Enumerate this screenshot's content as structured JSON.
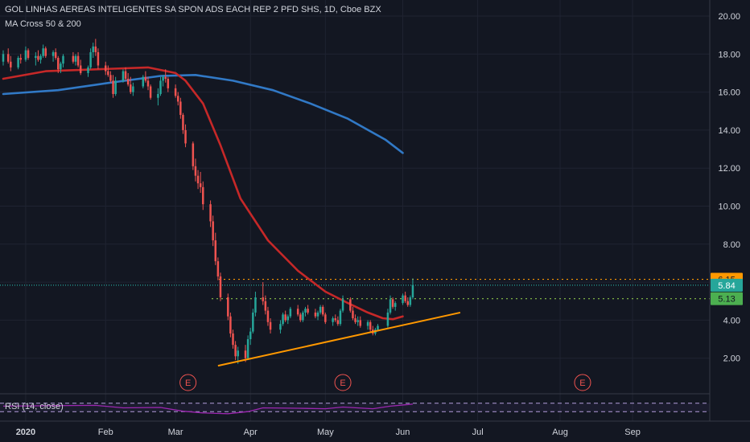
{
  "title": "GOL LINHAS AEREAS INTELIGENTES SA SPON ADS EACH REP 2 PFD SHS, 1D, Cboe BZX",
  "indicator": "MA Cross 50 & 200",
  "rsi_label": "RSI (14, close)",
  "colors": {
    "background": "#131722",
    "grid": "#1f2331",
    "up_candle": "#26a69a",
    "down_candle": "#ef5350",
    "ma50": "#c62828",
    "ma200": "#3179c6",
    "trendline": "#ff9800",
    "rsi": "#9c27b0",
    "earnings": "#ef5350"
  },
  "chart_data": {
    "type": "candlestick",
    "y_ticks": [
      "2.00",
      "4.00",
      "6.00",
      "8.00",
      "10.00",
      "12.00",
      "14.00",
      "16.00",
      "18.00",
      "20.00"
    ],
    "ylim": [
      0,
      20.6
    ],
    "x_ticks": [
      "2020",
      "Feb",
      "Mar",
      "Apr",
      "May",
      "Jun",
      "Jul",
      "Aug",
      "Sep"
    ],
    "price_labels": [
      {
        "value": 6.15,
        "text": "6.15",
        "color": "#ff9800",
        "text_color": "#131722"
      },
      {
        "value": 5.84,
        "text": "5.84",
        "color": "#26a69a",
        "text_color": "#ffffff"
      },
      {
        "value": 5.13,
        "text": "5.13",
        "color": "#4caf50",
        "text_color": "#131722"
      }
    ],
    "horizontal_lines": [
      {
        "value": 6.15,
        "color": "#ff9800",
        "style": "dotted"
      },
      {
        "value": 5.84,
        "color": "#26a69a",
        "style": "dotted"
      },
      {
        "value": 5.13,
        "color": "#8bc34a",
        "style": "dotted"
      }
    ],
    "trendline": [
      [
        "2020-03-19",
        1.6
      ],
      [
        "2020-06-24",
        4.4
      ]
    ],
    "earnings": [
      {
        "date": "2020-03-07",
        "label": "E"
      },
      {
        "date": "2020-05-08",
        "label": "E"
      },
      {
        "date": "2020-08-12",
        "label": "E"
      }
    ],
    "ma50": [
      [
        "2019-12-24",
        16.7
      ],
      [
        "2020-01-10",
        17.1
      ],
      [
        "2020-01-31",
        17.2
      ],
      [
        "2020-02-20",
        17.3
      ],
      [
        "2020-03-02",
        17.0
      ],
      [
        "2020-03-06",
        16.6
      ],
      [
        "2020-03-13",
        15.4
      ],
      [
        "2020-03-20",
        13.2
      ],
      [
        "2020-03-28",
        10.4
      ],
      [
        "2020-04-08",
        8.2
      ],
      [
        "2020-04-20",
        6.6
      ],
      [
        "2020-05-01",
        5.5
      ],
      [
        "2020-05-10",
        4.9
      ],
      [
        "2020-05-18",
        4.4
      ],
      [
        "2020-05-24",
        4.1
      ],
      [
        "2020-05-28",
        4.05
      ],
      [
        "2020-06-01",
        4.2
      ]
    ],
    "ma200": [
      [
        "2019-12-24",
        15.9
      ],
      [
        "2020-01-15",
        16.1
      ],
      [
        "2020-02-05",
        16.5
      ],
      [
        "2020-02-25",
        16.85
      ],
      [
        "2020-03-10",
        16.9
      ],
      [
        "2020-03-25",
        16.6
      ],
      [
        "2020-04-10",
        16.1
      ],
      [
        "2020-04-25",
        15.4
      ],
      [
        "2020-05-10",
        14.6
      ],
      [
        "2020-05-25",
        13.5
      ],
      [
        "2020-06-01",
        12.8
      ]
    ],
    "candles": [
      [
        "2019-12-24",
        17.6,
        18.2,
        17.4,
        18.0
      ],
      [
        "2019-12-26",
        18.0,
        18.3,
        17.5,
        17.6
      ],
      [
        "2019-12-27",
        17.6,
        17.9,
        17.1,
        17.3
      ],
      [
        "2019-12-30",
        17.3,
        17.9,
        17.2,
        17.8
      ],
      [
        "2019-12-31",
        17.8,
        18.0,
        17.5,
        17.7
      ],
      [
        "2020-01-02",
        17.7,
        18.4,
        17.6,
        18.2
      ],
      [
        "2020-01-03",
        18.2,
        18.3,
        17.7,
        17.8
      ],
      [
        "2020-01-06",
        17.8,
        18.1,
        17.4,
        17.9
      ],
      [
        "2020-01-07",
        17.9,
        18.2,
        17.6,
        17.7
      ],
      [
        "2020-01-08",
        17.7,
        18.0,
        17.5,
        17.9
      ],
      [
        "2020-01-09",
        17.9,
        18.5,
        17.8,
        18.3
      ],
      [
        "2020-01-10",
        18.3,
        18.4,
        17.8,
        17.9
      ],
      [
        "2020-01-13",
        17.9,
        18.2,
        17.6,
        18.1
      ],
      [
        "2020-01-14",
        18.1,
        18.3,
        17.7,
        17.8
      ],
      [
        "2020-01-15",
        17.8,
        17.9,
        17.0,
        17.2
      ],
      [
        "2020-01-16",
        17.2,
        17.6,
        17.0,
        17.5
      ],
      [
        "2020-01-17",
        17.5,
        18.0,
        17.3,
        17.9
      ],
      [
        "2020-01-21",
        17.9,
        18.1,
        17.5,
        17.6
      ],
      [
        "2020-01-22",
        17.6,
        18.0,
        17.4,
        17.9
      ],
      [
        "2020-01-23",
        17.9,
        18.1,
        17.3,
        17.4
      ],
      [
        "2020-01-24",
        17.4,
        17.7,
        16.9,
        17.0
      ],
      [
        "2020-01-27",
        17.0,
        17.4,
        16.8,
        17.3
      ],
      [
        "2020-01-28",
        17.3,
        18.3,
        17.2,
        18.1
      ],
      [
        "2020-01-29",
        18.1,
        18.6,
        17.8,
        18.4
      ],
      [
        "2020-01-30",
        18.4,
        18.8,
        17.9,
        18.1
      ],
      [
        "2020-01-31",
        18.1,
        18.3,
        17.2,
        17.4
      ],
      [
        "2020-02-03",
        17.4,
        17.6,
        16.9,
        17.1
      ],
      [
        "2020-02-04",
        17.1,
        17.4,
        16.8,
        16.9
      ],
      [
        "2020-02-05",
        16.9,
        17.1,
        16.5,
        16.6
      ],
      [
        "2020-02-06",
        16.6,
        16.9,
        15.7,
        15.9
      ],
      [
        "2020-02-07",
        15.9,
        16.8,
        15.8,
        16.6
      ],
      [
        "2020-02-10",
        16.6,
        17.2,
        16.5,
        17.1
      ],
      [
        "2020-02-11",
        17.1,
        17.3,
        16.6,
        16.7
      ],
      [
        "2020-02-12",
        16.7,
        17.0,
        16.3,
        16.4
      ],
      [
        "2020-02-13",
        16.4,
        16.8,
        15.9,
        16.0
      ],
      [
        "2020-02-14",
        16.0,
        16.5,
        15.8,
        16.3
      ],
      [
        "2020-02-18",
        16.3,
        16.9,
        16.2,
        16.8
      ],
      [
        "2020-02-19",
        16.8,
        17.1,
        16.5,
        16.6
      ],
      [
        "2020-02-20",
        16.6,
        16.8,
        16.1,
        16.3
      ],
      [
        "2020-02-21",
        16.3,
        16.4,
        15.6,
        15.7
      ],
      [
        "2020-02-24",
        15.7,
        16.2,
        15.3,
        15.9
      ],
      [
        "2020-02-25",
        15.9,
        16.8,
        15.8,
        16.6
      ],
      [
        "2020-02-26",
        16.6,
        16.9,
        16.3,
        16.8
      ],
      [
        "2020-02-27",
        16.8,
        17.2,
        16.5,
        16.7
      ],
      [
        "2020-02-28",
        16.7,
        16.8,
        16.0,
        16.2
      ],
      [
        "2020-03-02",
        16.2,
        16.4,
        15.7,
        15.8
      ],
      [
        "2020-03-03",
        15.8,
        16.0,
        15.3,
        15.5
      ],
      [
        "2020-03-04",
        15.5,
        15.7,
        14.6,
        14.8
      ],
      [
        "2020-03-05",
        14.8,
        14.9,
        13.8,
        14.0
      ],
      [
        "2020-03-06",
        14.0,
        14.3,
        13.1,
        13.3
      ],
      [
        "2020-03-09",
        13.3,
        13.4,
        11.9,
        12.1
      ],
      [
        "2020-03-10",
        12.1,
        12.5,
        11.3,
        11.6
      ],
      [
        "2020-03-11",
        11.6,
        11.9,
        10.9,
        11.2
      ],
      [
        "2020-03-12",
        11.2,
        11.8,
        10.7,
        11.0
      ],
      [
        "2020-03-13",
        11.0,
        11.3,
        9.8,
        10.1
      ],
      [
        "2020-03-16",
        10.1,
        10.3,
        8.9,
        9.2
      ],
      [
        "2020-03-17",
        9.2,
        9.5,
        7.9,
        8.2
      ],
      [
        "2020-03-18",
        8.2,
        8.6,
        6.9,
        7.1
      ],
      [
        "2020-03-19",
        7.1,
        7.3,
        6.1,
        6.3
      ],
      [
        "2020-03-20",
        6.3,
        6.5,
        5.0,
        5.2
      ],
      [
        "2020-03-23",
        5.2,
        5.4,
        4.0,
        4.2
      ],
      [
        "2020-03-24",
        4.2,
        4.4,
        3.1,
        3.3
      ],
      [
        "2020-03-25",
        3.3,
        3.5,
        2.5,
        2.7
      ],
      [
        "2020-03-26",
        2.7,
        2.9,
        1.9,
        2.1
      ],
      [
        "2020-03-27",
        2.1,
        2.6,
        1.7,
        2.4
      ],
      [
        "2020-03-30",
        2.4,
        2.7,
        1.8,
        2.0
      ],
      [
        "2020-03-31",
        2.0,
        3.2,
        1.9,
        3.0
      ],
      [
        "2020-04-01",
        3.0,
        3.6,
        2.7,
        3.4
      ],
      [
        "2020-04-02",
        3.4,
        4.6,
        3.3,
        4.4
      ],
      [
        "2020-04-03",
        4.4,
        5.5,
        4.2,
        5.2
      ],
      [
        "2020-04-06",
        5.2,
        6.0,
        4.8,
        5.0
      ],
      [
        "2020-04-07",
        5.0,
        5.3,
        4.3,
        4.5
      ],
      [
        "2020-04-08",
        4.5,
        4.7,
        3.7,
        3.9
      ],
      [
        "2020-04-09",
        3.9,
        4.1,
        3.3,
        3.5
      ],
      [
        "2020-04-13",
        3.5,
        4.0,
        3.3,
        3.8
      ],
      [
        "2020-04-14",
        3.8,
        4.4,
        3.7,
        4.3
      ],
      [
        "2020-04-15",
        4.3,
        4.5,
        3.9,
        4.0
      ],
      [
        "2020-04-16",
        4.0,
        4.3,
        3.8,
        4.2
      ],
      [
        "2020-04-17",
        4.2,
        4.7,
        4.1,
        4.6
      ],
      [
        "2020-04-20",
        4.6,
        4.8,
        4.2,
        4.3
      ],
      [
        "2020-04-21",
        4.3,
        4.4,
        3.9,
        4.0
      ],
      [
        "2020-04-22",
        4.0,
        4.5,
        3.9,
        4.4
      ],
      [
        "2020-04-23",
        4.4,
        4.7,
        4.2,
        4.6
      ],
      [
        "2020-04-24",
        4.6,
        4.8,
        4.3,
        4.4
      ],
      [
        "2020-04-27",
        4.4,
        4.6,
        4.1,
        4.2
      ],
      [
        "2020-04-28",
        4.2,
        4.5,
        4.0,
        4.4
      ],
      [
        "2020-04-29",
        4.4,
        4.8,
        4.3,
        4.7
      ],
      [
        "2020-04-30",
        4.7,
        4.8,
        4.2,
        4.3
      ],
      [
        "2020-05-01",
        4.3,
        4.4,
        3.8,
        3.9
      ],
      [
        "2020-05-04",
        3.9,
        4.2,
        3.7,
        4.1
      ],
      [
        "2020-05-05",
        4.1,
        4.3,
        3.9,
        4.0
      ],
      [
        "2020-05-06",
        4.0,
        4.2,
        3.7,
        3.8
      ],
      [
        "2020-05-07",
        3.8,
        4.6,
        3.7,
        4.5
      ],
      [
        "2020-05-08",
        4.5,
        5.3,
        4.4,
        5.1
      ],
      [
        "2020-05-11",
        5.1,
        5.2,
        4.4,
        4.5
      ],
      [
        "2020-05-12",
        4.5,
        4.7,
        4.0,
        4.1
      ],
      [
        "2020-05-13",
        4.1,
        4.3,
        3.8,
        3.9
      ],
      [
        "2020-05-14",
        3.9,
        4.2,
        3.7,
        4.0
      ],
      [
        "2020-05-15",
        4.0,
        4.2,
        3.6,
        3.7
      ],
      [
        "2020-05-18",
        3.7,
        4.0,
        3.5,
        3.9
      ],
      [
        "2020-05-19",
        3.9,
        4.0,
        3.4,
        3.5
      ],
      [
        "2020-05-20",
        3.5,
        3.7,
        3.2,
        3.3
      ],
      [
        "2020-05-21",
        3.3,
        3.6,
        3.2,
        3.5
      ],
      [
        "2020-05-22",
        3.5,
        3.8,
        3.4,
        3.7
      ],
      [
        "2020-05-26",
        3.7,
        4.6,
        3.6,
        4.4
      ],
      [
        "2020-05-27",
        4.4,
        5.3,
        4.3,
        5.1
      ],
      [
        "2020-05-28",
        5.1,
        5.2,
        4.6,
        4.7
      ],
      [
        "2020-05-29",
        4.7,
        5.0,
        4.5,
        4.9
      ],
      [
        "2020-06-01",
        4.9,
        5.4,
        4.8,
        5.3
      ],
      [
        "2020-06-02",
        5.3,
        5.5,
        4.9,
        5.0
      ],
      [
        "2020-06-03",
        5.0,
        5.2,
        4.7,
        4.8
      ],
      [
        "2020-06-04",
        4.8,
        5.3,
        4.7,
        5.2
      ],
      [
        "2020-06-05",
        5.2,
        6.2,
        5.1,
        5.84
      ]
    ],
    "rsi": {
      "lines": [
        30,
        70
      ],
      "values": [
        [
          "2019-12-24",
          56
        ],
        [
          "2020-01-10",
          58
        ],
        [
          "2020-01-30",
          60
        ],
        [
          "2020-02-10",
          48
        ],
        [
          "2020-02-25",
          50
        ],
        [
          "2020-03-05",
          32
        ],
        [
          "2020-03-13",
          24
        ],
        [
          "2020-03-23",
          20
        ],
        [
          "2020-03-31",
          30
        ],
        [
          "2020-04-06",
          48
        ],
        [
          "2020-04-20",
          46
        ],
        [
          "2020-05-01",
          44
        ],
        [
          "2020-05-08",
          52
        ],
        [
          "2020-05-20",
          44
        ],
        [
          "2020-05-27",
          56
        ],
        [
          "2020-06-05",
          66
        ]
      ]
    }
  }
}
